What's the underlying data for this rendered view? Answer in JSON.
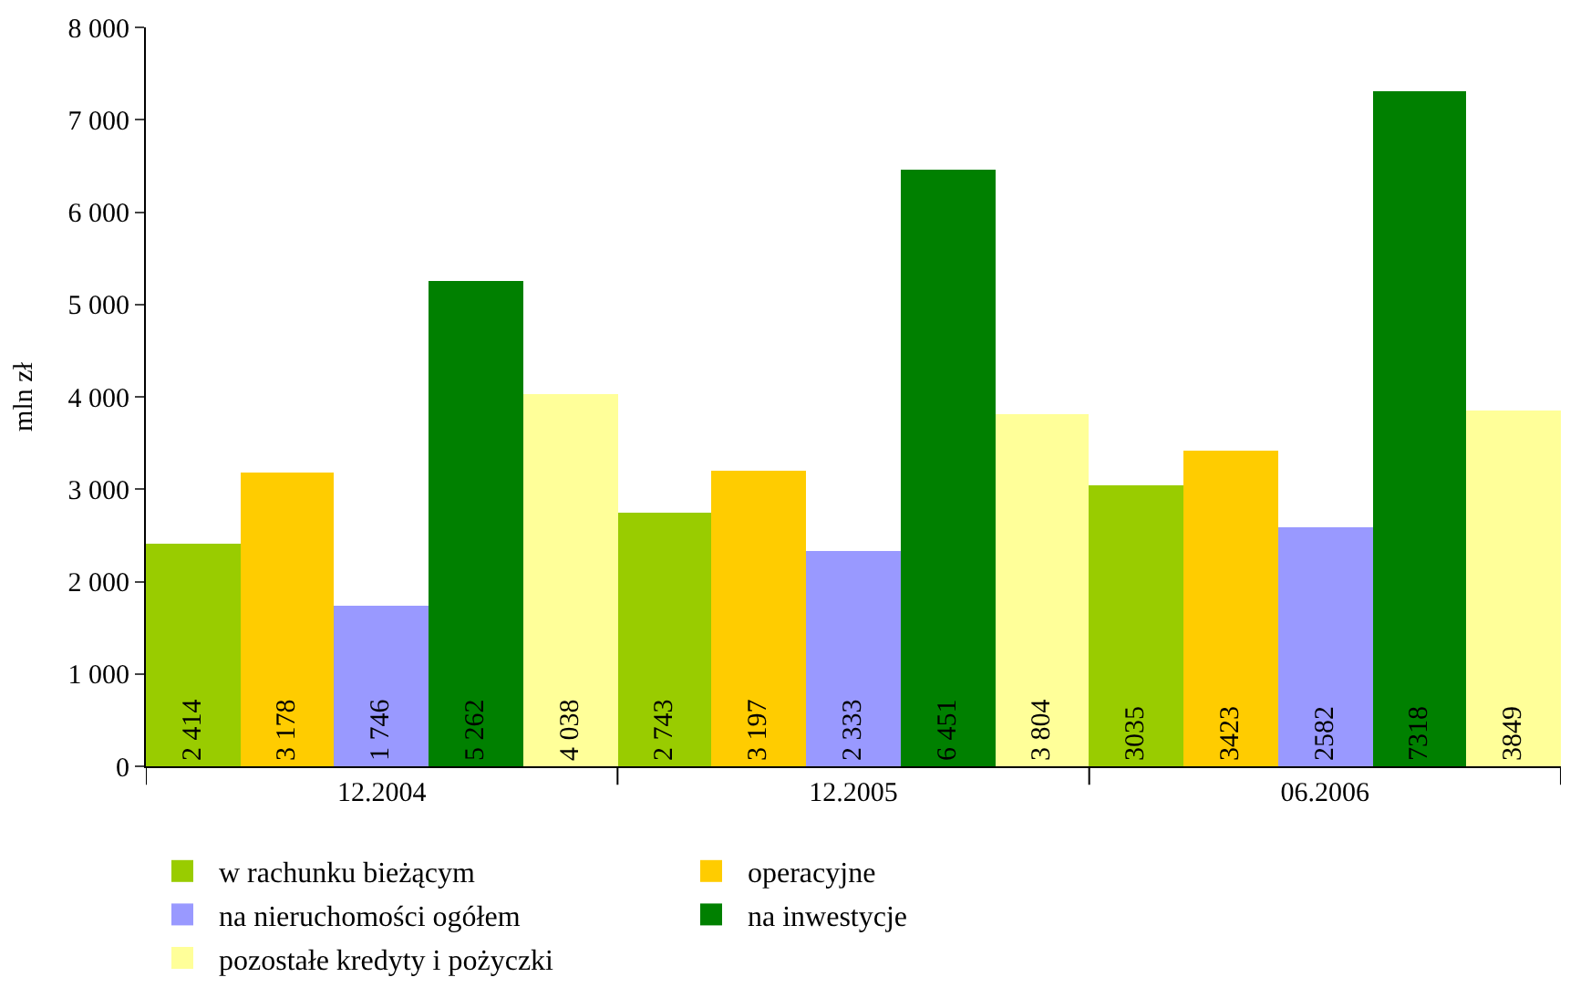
{
  "chart_data": {
    "type": "bar",
    "ylabel": "mln zł",
    "categories": [
      "12.2004",
      "12.2005",
      "06.2006"
    ],
    "series": [
      {
        "name": "w rachunku bieżącym",
        "color": "#99cc00",
        "values": [
          2414,
          2743,
          3035
        ],
        "value_labels": [
          "2 414",
          "2 743",
          "3035"
        ]
      },
      {
        "name": "operacyjne",
        "color": "#ffcc00",
        "values": [
          3178,
          3197,
          3423
        ],
        "value_labels": [
          "3 178",
          "3 197",
          "3423"
        ]
      },
      {
        "name": "na nieruchomości ogółem",
        "color": "#9999ff",
        "values": [
          1746,
          2333,
          2582
        ],
        "value_labels": [
          "1 746",
          "2 333",
          "2582"
        ]
      },
      {
        "name": "na inwestycje",
        "color": "#008000",
        "values": [
          5262,
          6451,
          7318
        ],
        "value_labels": [
          "5 262",
          "6 451",
          "7318"
        ]
      },
      {
        "name": "pozostałe kredyty i pożyczki",
        "color": "#ffff99",
        "values": [
          4038,
          3804,
          3849
        ],
        "value_labels": [
          "4 038",
          "3 804",
          "3849"
        ]
      }
    ],
    "ylim": [
      0,
      8000
    ],
    "yticks": [
      {
        "value": 0,
        "label": "0"
      },
      {
        "value": 1000,
        "label": "1 000"
      },
      {
        "value": 2000,
        "label": "2 000"
      },
      {
        "value": 3000,
        "label": "3 000"
      },
      {
        "value": 4000,
        "label": "4 000"
      },
      {
        "value": 5000,
        "label": "5 000"
      },
      {
        "value": 6000,
        "label": "6 000"
      },
      {
        "value": 7000,
        "label": "7 000"
      },
      {
        "value": 8000,
        "label": "8 000"
      }
    ],
    "legend": "bottom"
  }
}
